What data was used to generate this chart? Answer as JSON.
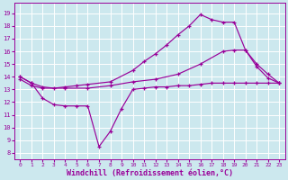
{
  "background_color": "#cce8ee",
  "grid_color": "#b8dde8",
  "line_color": "#990099",
  "xlabel": "Windchill (Refroidissement éolien,°C)",
  "xlabel_fontsize": 6.0,
  "ylim": [
    7.5,
    19.8
  ],
  "xlim": [
    -0.5,
    23.5
  ],
  "xticks": [
    0,
    1,
    2,
    3,
    4,
    5,
    6,
    7,
    8,
    9,
    10,
    11,
    12,
    13,
    14,
    15,
    16,
    17,
    18,
    19,
    20,
    21,
    22,
    23
  ],
  "yticks": [
    8,
    9,
    10,
    11,
    12,
    13,
    14,
    15,
    16,
    17,
    18,
    19
  ],
  "line_A_x": [
    0,
    1,
    2,
    3,
    4,
    5,
    6,
    8,
    10,
    11,
    12,
    13,
    14,
    15,
    16,
    17,
    18,
    19,
    20,
    21,
    22,
    23
  ],
  "line_A_y": [
    14.0,
    13.5,
    13.2,
    13.1,
    13.2,
    13.3,
    13.4,
    13.6,
    14.5,
    15.2,
    15.8,
    16.5,
    17.3,
    18.0,
    18.9,
    18.5,
    18.3,
    18.3,
    16.1,
    14.8,
    13.9,
    13.5
  ],
  "line_B_x": [
    0,
    1,
    2,
    4,
    6,
    8,
    10,
    12,
    14,
    16,
    18,
    19,
    20,
    21,
    22,
    23
  ],
  "line_B_y": [
    13.8,
    13.3,
    13.1,
    13.1,
    13.1,
    13.3,
    13.6,
    13.8,
    14.2,
    15.0,
    16.0,
    16.1,
    16.1,
    15.0,
    14.2,
    13.5
  ],
  "line_C_x": [
    0,
    1,
    2,
    3,
    4,
    5,
    6,
    7,
    8,
    9,
    10,
    11,
    12,
    13,
    14,
    15,
    16,
    17,
    18,
    19,
    20,
    21,
    22,
    23
  ],
  "line_C_y": [
    14.0,
    13.5,
    12.3,
    11.8,
    11.7,
    11.7,
    11.7,
    8.5,
    9.7,
    11.5,
    13.0,
    13.1,
    13.2,
    13.2,
    13.3,
    13.3,
    13.4,
    13.5,
    13.5,
    13.5,
    13.5,
    13.5,
    13.5,
    13.5
  ]
}
